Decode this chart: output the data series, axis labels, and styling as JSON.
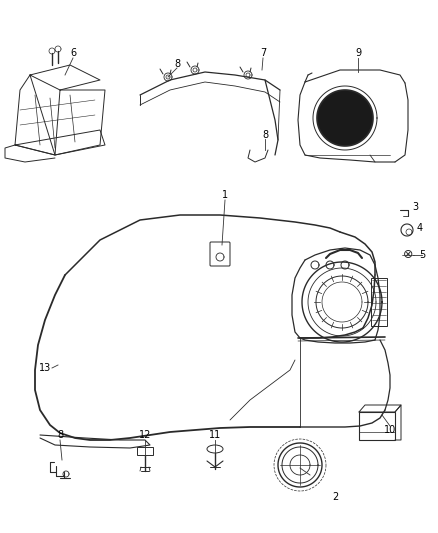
{
  "background_color": "#ffffff",
  "fig_width": 4.38,
  "fig_height": 5.33,
  "dpi": 100,
  "line_color": "#2a2a2a",
  "label_color": "#000000",
  "label_fontsize": 7.0
}
